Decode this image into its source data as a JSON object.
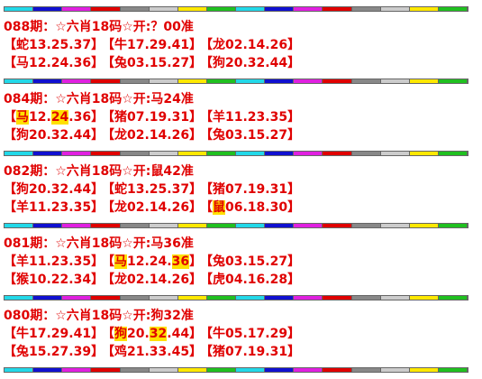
{
  "sections": [
    {
      "header": "088期：☆六肖18码☆开:？00准",
      "rows": [
        [
          [
            "【蛇13.25.37】"
          ],
          [
            "【牛17.29.41】"
          ],
          [
            "【龙02.14.26】"
          ]
        ],
        [
          [
            "【马12.24.36】"
          ],
          [
            "【兔03.15.27】"
          ],
          [
            "【狗20.32.44】"
          ]
        ]
      ]
    },
    {
      "header": "084期：☆六肖18码☆开:马24准",
      "rows": [
        [
          [
            "【",
            {
              "text": "马",
              "highlight": true
            },
            "12.",
            {
              "text": "24",
              "highlight": true
            },
            ".36】"
          ],
          [
            "【猪07.19.31】"
          ],
          [
            "【羊11.23.35】"
          ]
        ],
        [
          [
            "【狗20.32.44】"
          ],
          [
            "【龙02.14.26】"
          ],
          [
            "【兔03.15.27】"
          ]
        ]
      ]
    },
    {
      "header": "082期：☆六肖18码☆开:鼠42准",
      "rows": [
        [
          [
            "【狗20.32.44】"
          ],
          [
            "【蛇13.25.37】"
          ],
          [
            "【猪07.19.31】"
          ]
        ],
        [
          [
            "【羊11.23.35】"
          ],
          [
            "【龙02.14.26】"
          ],
          [
            "【",
            {
              "text": "鼠",
              "highlight": true
            },
            "06.18.30】"
          ]
        ]
      ]
    },
    {
      "header": "081期：☆六肖18码☆开:马36准",
      "rows": [
        [
          [
            "【羊11.23.35】"
          ],
          [
            "【",
            {
              "text": "马",
              "highlight": true
            },
            "12.24.",
            {
              "text": "36",
              "highlight": true
            },
            "】"
          ],
          [
            "【兔03.15.27】"
          ]
        ],
        [
          [
            "【猴10.22.34】"
          ],
          [
            "【龙02.14.26】"
          ],
          [
            "【虎04.16.28】"
          ]
        ]
      ]
    },
    {
      "header": "080期：☆六肖18码☆开:狗32准",
      "rows": [
        [
          [
            "【牛17.29.41】"
          ],
          [
            "【",
            {
              "text": "狗",
              "highlight": true
            },
            "20.",
            {
              "text": "32",
              "highlight": true
            },
            ".44】"
          ],
          [
            "【牛05.17.29】"
          ]
        ],
        [
          [
            "【兔15.27.39】"
          ],
          [
            "【鸡21.33.45】"
          ],
          [
            "【猪07.19.31】"
          ]
        ]
      ]
    }
  ]
}
